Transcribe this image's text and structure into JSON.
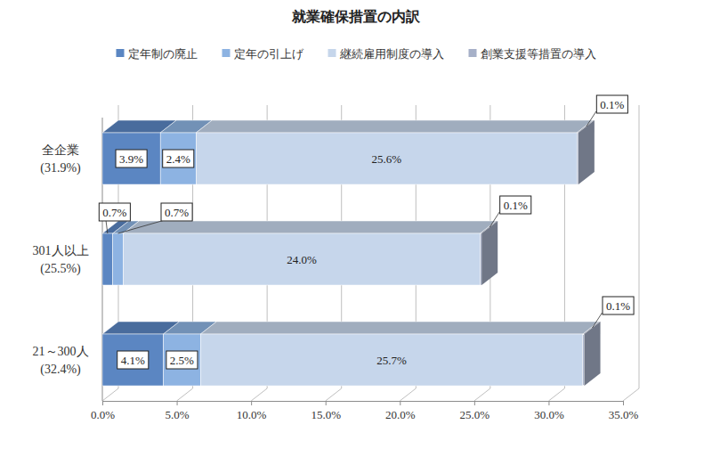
{
  "chart_data": {
    "type": "bar",
    "orientation": "horizontal",
    "stacked": true,
    "data_labels": true,
    "title": "就業確保措置の内訳",
    "legend": "top",
    "grid": true,
    "categories": [
      "全企業\n(31.9%)",
      "301人以上\n(25.5%)",
      "21～300人\n(32.4%)"
    ],
    "series": [
      {
        "name": "定年制の廃止",
        "color": "#5b86c2",
        "values": [
          3.9,
          0.7,
          4.1
        ],
        "value_labels": [
          "3.9%",
          "0.7%",
          "4.1%"
        ]
      },
      {
        "name": "定年の引上げ",
        "color": "#8db3e2",
        "values": [
          2.4,
          0.7,
          2.5
        ],
        "value_labels": [
          "2.4%",
          "0.7%",
          "2.5%"
        ]
      },
      {
        "name": "継続雇用制度の導入",
        "color": "#c6d6eb",
        "values": [
          25.6,
          24.0,
          25.7
        ],
        "value_labels": [
          "25.6%",
          "24.0%",
          "25.7%"
        ]
      },
      {
        "name": "創業支援等措置の導入",
        "color": "#a6b0c8",
        "values": [
          0.1,
          0.1,
          0.1
        ],
        "value_labels": [
          "0.1%",
          "0.1%",
          "0.1%"
        ]
      }
    ],
    "xlim": [
      0,
      35
    ],
    "xticks": [
      {
        "value": 0,
        "label": "0.0%"
      },
      {
        "value": 5,
        "label": "5.0%"
      },
      {
        "value": 10,
        "label": "10.0%"
      },
      {
        "value": 15,
        "label": "15.0%"
      },
      {
        "value": 20,
        "label": "20.0%"
      },
      {
        "value": 25,
        "label": "25.0%"
      },
      {
        "value": 30,
        "label": "30.0%"
      },
      {
        "value": 35,
        "label": "35.0%"
      }
    ]
  }
}
